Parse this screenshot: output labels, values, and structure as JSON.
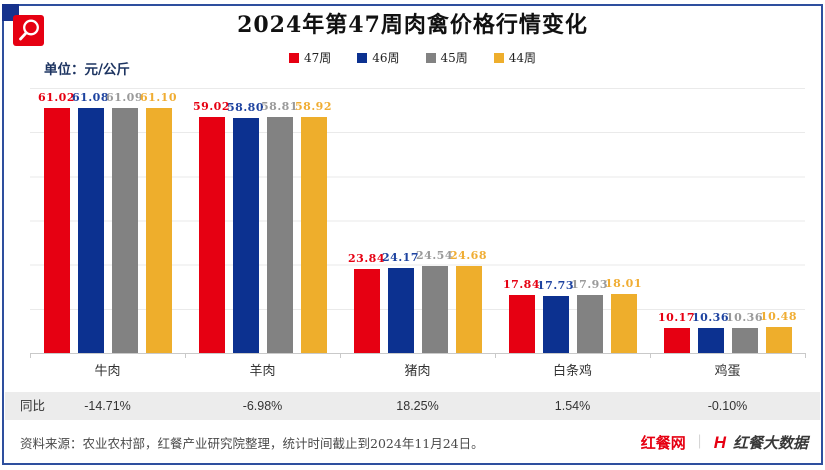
{
  "page": {
    "title": "2024年第47周肉禽价格行情变化",
    "unit_label": "单位：元/公斤"
  },
  "chart_data": {
    "type": "bar",
    "title": "2024年第47周肉禽价格行情变化",
    "unit": "元/公斤",
    "categories": [
      "牛肉",
      "羊肉",
      "猪肉",
      "白条鸡",
      "鸡蛋"
    ],
    "series": [
      {
        "name": "47周",
        "color": "#e60012",
        "label_color": "#e60012",
        "values": [
          "61.02",
          "59.02",
          "23.84",
          "17.84",
          "10.17"
        ]
      },
      {
        "name": "46周",
        "color": "#0c3190",
        "label_color": "#1e43a0",
        "values": [
          "61.08",
          "58.80",
          "24.17",
          "17.73",
          "10.36"
        ]
      },
      {
        "name": "45周",
        "color": "#828282",
        "label_color": "#9a9a9a",
        "values": [
          "61.09",
          "58.81",
          "24.54",
          "17.93",
          "10.36"
        ]
      },
      {
        "name": "44周",
        "color": "#eeae2c",
        "label_color": "#f0ad33",
        "values": [
          "61.10",
          "58.92",
          "24.68",
          "18.01",
          "10.48"
        ]
      }
    ],
    "yoy_row": {
      "label": "同比",
      "values": [
        "-14.71%",
        "-6.98%",
        "18.25%",
        "1.54%",
        "-0.10%"
      ]
    },
    "ylim": [
      4.5,
      65.6
    ],
    "grid": true,
    "legend_position": "top"
  },
  "footer": {
    "source_text": "资料来源：农业农村部，红餐产业研究院整理，统计时间截止到2024年11月24日。",
    "brand_left": "红餐网",
    "brand_divider": "｜",
    "brand_mark": "H",
    "brand_right": "红餐大数据"
  }
}
